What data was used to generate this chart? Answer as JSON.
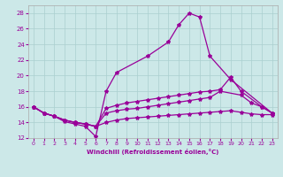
{
  "xlabel": "Windchill (Refroidissement éolien,°C)",
  "bg_color": "#cce8e8",
  "line_color": "#990099",
  "xlim": [
    -0.5,
    23.5
  ],
  "ylim": [
    12,
    29
  ],
  "yticks": [
    12,
    14,
    16,
    18,
    20,
    22,
    24,
    26,
    28
  ],
  "xticks": [
    0,
    1,
    2,
    3,
    4,
    5,
    6,
    7,
    8,
    9,
    10,
    11,
    12,
    13,
    14,
    15,
    16,
    17,
    18,
    19,
    20,
    21,
    22,
    23
  ],
  "line1_x": [
    0,
    1,
    2,
    3,
    4,
    5,
    6,
    7,
    8,
    11,
    13,
    14,
    15,
    16,
    17,
    19,
    23
  ],
  "line1_y": [
    16.0,
    15.2,
    14.8,
    14.1,
    13.8,
    13.5,
    12.2,
    18.0,
    20.4,
    22.5,
    24.3,
    26.5,
    28.0,
    27.5,
    22.5,
    19.5,
    15.2
  ],
  "line2_x": [
    0,
    1,
    2,
    3,
    4,
    5,
    6,
    7,
    8,
    9,
    10,
    11,
    12,
    13,
    14,
    15,
    16,
    17,
    18,
    19,
    20,
    22,
    23
  ],
  "line2_y": [
    16.0,
    15.2,
    14.8,
    14.3,
    14.0,
    13.8,
    13.5,
    15.8,
    16.2,
    16.5,
    16.7,
    16.9,
    17.1,
    17.3,
    17.5,
    17.7,
    17.9,
    18.0,
    18.2,
    19.8,
    18.0,
    16.0,
    15.2
  ],
  "line3_x": [
    0,
    1,
    2,
    3,
    4,
    5,
    6,
    7,
    8,
    9,
    10,
    11,
    12,
    13,
    14,
    15,
    16,
    17,
    18,
    20,
    21,
    22,
    23
  ],
  "line3_y": [
    16.0,
    15.2,
    14.8,
    14.3,
    14.0,
    13.8,
    13.5,
    15.2,
    15.5,
    15.7,
    15.8,
    16.0,
    16.2,
    16.4,
    16.6,
    16.8,
    17.0,
    17.2,
    18.0,
    17.5,
    16.5,
    16.0,
    15.2
  ],
  "line4_x": [
    0,
    1,
    2,
    3,
    4,
    5,
    6,
    7,
    8,
    9,
    10,
    11,
    12,
    13,
    14,
    15,
    16,
    17,
    18,
    19,
    20,
    21,
    22,
    23
  ],
  "line4_y": [
    16.0,
    15.2,
    14.8,
    14.3,
    14.0,
    13.8,
    13.5,
    14.0,
    14.3,
    14.5,
    14.6,
    14.7,
    14.8,
    14.9,
    15.0,
    15.1,
    15.2,
    15.3,
    15.4,
    15.5,
    15.3,
    15.1,
    15.0,
    15.0
  ]
}
